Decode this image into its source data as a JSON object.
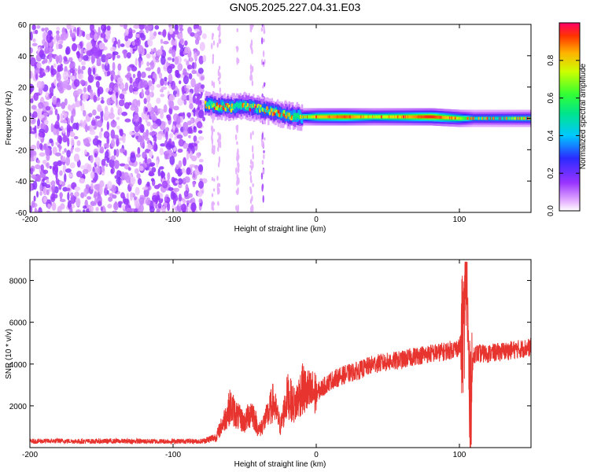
{
  "title": "GN05.2025.227.04.31.E03",
  "chart_data": [
    {
      "type": "heatmap",
      "xlabel": "Height of straight line (km)",
      "ylabel": "Frequency (Hz)",
      "xlim": [
        -200,
        150
      ],
      "ylim": [
        -60,
        60
      ],
      "xticks": [
        -200,
        -100,
        0,
        100
      ],
      "yticks": [
        -60,
        -40,
        -20,
        0,
        20,
        40,
        60
      ],
      "ytick_labels": [
        "-60",
        "-40",
        "-20",
        "0",
        "20",
        "40",
        "60"
      ],
      "colorbar": {
        "label": "Normalized spectral amplitude",
        "range": [
          0.0,
          1.0
        ],
        "ticks": [
          0.0,
          0.2,
          0.4,
          0.6,
          0.8
        ],
        "tick_labels": [
          "0.0",
          "0.2",
          "0.4",
          "0.6",
          "0.8"
        ],
        "colormap": "rainbow (magenta to red)"
      },
      "noise_region_x": [
        -200,
        -78
      ],
      "signal_band": {
        "x": [
          -78,
          -70,
          -60,
          -50,
          -40,
          -30,
          -20,
          -10,
          0,
          20,
          40,
          60,
          80,
          100,
          110,
          150
        ],
        "center_freq_hz": [
          9,
          8,
          7,
          8,
          6,
          4,
          2,
          1,
          1,
          1,
          1,
          1,
          1,
          0,
          0,
          0
        ],
        "peak_amplitude": [
          0.45,
          0.5,
          0.5,
          0.5,
          0.45,
          0.45,
          0.5,
          0.55,
          0.8,
          0.9,
          0.7,
          0.8,
          0.95,
          0.7,
          0.45,
          0.5
        ]
      }
    },
    {
      "type": "line",
      "xlabel": "Height of straight line (km)",
      "ylabel": "SNR (10 * v/v)",
      "xlim": [
        -200,
        150
      ],
      "ylim": [
        0,
        9000
      ],
      "xticks": [
        -200,
        -100,
        0,
        100
      ],
      "yticks": [
        2000,
        4000,
        6000,
        8000
      ],
      "color": "#e8342f",
      "x": [
        -200,
        -180,
        -160,
        -140,
        -120,
        -100,
        -90,
        -80,
        -70,
        -65,
        -60,
        -55,
        -50,
        -45,
        -40,
        -35,
        -30,
        -25,
        -20,
        -15,
        -10,
        -5,
        0,
        10,
        20,
        30,
        40,
        50,
        60,
        70,
        80,
        90,
        95,
        100,
        103,
        105,
        107,
        110,
        120,
        130,
        140,
        150
      ],
      "values": [
        300,
        320,
        300,
        310,
        300,
        300,
        310,
        300,
        500,
        1200,
        2000,
        1500,
        1200,
        1800,
        800,
        1400,
        2200,
        1000,
        2500,
        2000,
        2800,
        2600,
        2600,
        3200,
        3500,
        3700,
        4000,
        4100,
        4200,
        4400,
        4500,
        4600,
        4700,
        4800,
        5500,
        8800,
        2000,
        4500,
        4500,
        4600,
        4700,
        4800
      ]
    }
  ]
}
